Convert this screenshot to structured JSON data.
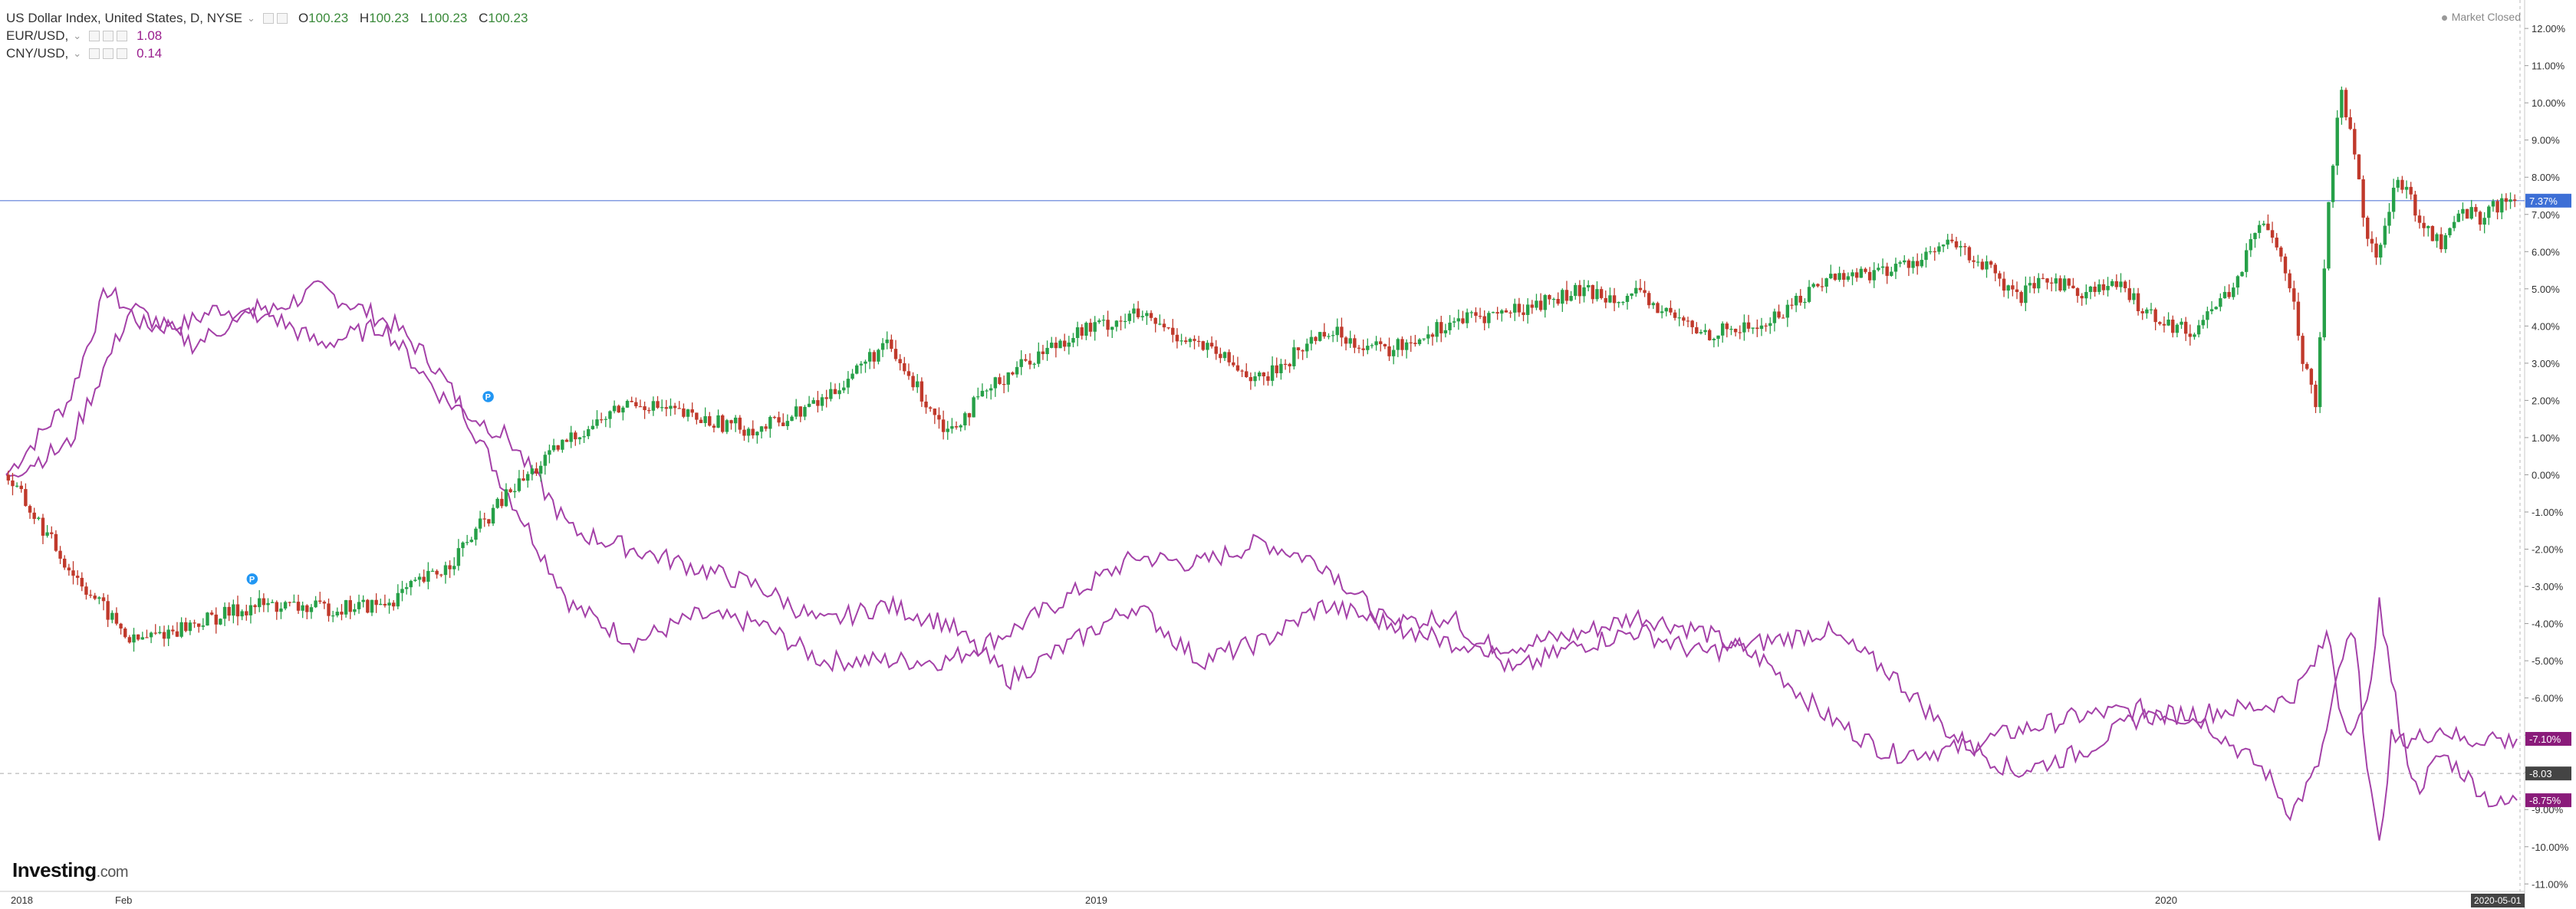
{
  "header": {
    "title": "US Dollar Index, United States, D, NYSE",
    "open_label": "O",
    "open": "100.23",
    "high_label": "H",
    "high": "100.23",
    "low_label": "L",
    "low": "100.23",
    "close_label": "C",
    "close": "100.23"
  },
  "legend": {
    "eur_name": "EUR/USD,",
    "eur_value": "1.08",
    "cny_name": "CNY/USD,",
    "cny_value": "0.14"
  },
  "market_status": "Market Closed",
  "logo": {
    "brand": "Investing",
    "suffix": ".com"
  },
  "colors": {
    "candle_up": "#26a048",
    "candle_down": "#c0392b",
    "compare_line": "#a441a8",
    "price_line": "#5b7bd8",
    "badge_blue": "#3d6fd6",
    "badge_purple": "#8a1b7a",
    "badge_dark": "#444444",
    "axis_text": "#333333",
    "marker": "#2196f3"
  },
  "chart_data": {
    "type": "line",
    "x_tick_labels": [
      "2018",
      "Feb",
      "2019",
      "2020"
    ],
    "x_end_label": "2020-05-01",
    "y_tick_labels": [
      "12.00%",
      "11.00%",
      "10.00%",
      "9.00%",
      "8.00%",
      "7.00%",
      "6.00%",
      "5.00%",
      "4.00%",
      "3.00%",
      "2.00%",
      "1.00%",
      "0.00%",
      "-1.00%",
      "-2.00%",
      "-3.00%",
      "-4.00%",
      "-5.00%",
      "-6.00%",
      "-7.00%",
      "-8.00%",
      "-9.00%",
      "-10.00%",
      "-11.00%"
    ],
    "ylim": [
      -11.2,
      12.6
    ],
    "xlim": [
      0,
      1000
    ],
    "series": [
      {
        "name": "US Dollar Index",
        "style": "candlestick",
        "x": [
          0,
          25,
          50,
          75,
          100,
          125,
          150,
          175,
          200,
          225,
          250,
          275,
          300,
          325,
          350,
          375,
          400,
          425,
          450,
          475,
          500,
          525,
          550,
          575,
          600,
          625,
          650,
          675,
          700,
          725,
          750,
          765,
          775,
          790,
          800,
          815,
          825,
          840,
          855,
          870,
          880,
          885,
          890,
          895,
          900,
          905,
          910,
          915,
          920,
          925,
          930,
          935,
          940,
          945,
          950,
          955,
          960,
          965,
          970,
          975,
          980,
          985,
          990,
          995,
          999
        ],
        "values": [
          0,
          -2.5,
          -4.5,
          -4,
          -3.5,
          -3.6,
          -3.5,
          -2.5,
          -0.5,
          1,
          2,
          1.5,
          1.2,
          2,
          3.5,
          1.2,
          2.8,
          3.8,
          4.3,
          3.5,
          2.5,
          3.9,
          3.3,
          4.1,
          4.4,
          4.9,
          4.8,
          3.8,
          4,
          5.3,
          5.5,
          5.9,
          6.2,
          5.5,
          4.7,
          5.3,
          4.9,
          5.1,
          4.3,
          3.8,
          4.6,
          4.9,
          5.5,
          6.3,
          6.9,
          6.2,
          5,
          3,
          2,
          7.5,
          10.3,
          9,
          6.5,
          5.8,
          7.5,
          7.9,
          7,
          6.5,
          6.2,
          6.8,
          7.1,
          6.9,
          7.2,
          7.3,
          7.37
        ]
      },
      {
        "name": "EUR/USD",
        "style": "line",
        "x": [
          0,
          25,
          40,
          55,
          70,
          85,
          100,
          115,
          125,
          140,
          155,
          170,
          180,
          200,
          225,
          250,
          275,
          300,
          325,
          350,
          375,
          400,
          425,
          450,
          475,
          500,
          525,
          550,
          575,
          600,
          625,
          650,
          675,
          700,
          725,
          750,
          775,
          800,
          825,
          850,
          875,
          900,
          910,
          920,
          925,
          930,
          935,
          940,
          945,
          950,
          955,
          960,
          970,
          980,
          990,
          995,
          999
        ],
        "values": [
          0,
          2,
          5,
          4,
          4,
          4.5,
          4.2,
          4.7,
          5,
          4.5,
          4,
          3,
          2,
          -0.5,
          -3.5,
          -4.5,
          -3.8,
          -4,
          -5,
          -5,
          -5,
          -4.2,
          -3.2,
          -2.2,
          -2.4,
          -1.8,
          -2.4,
          -4,
          -4.5,
          -4.6,
          -4.3,
          -3.8,
          -4.2,
          -5,
          -6.5,
          -7.5,
          -7.4,
          -6.9,
          -6.5,
          -6.3,
          -6.6,
          -8,
          -9.1,
          -8,
          -6.7,
          -5,
          -4.2,
          -7.5,
          -10.2,
          -7,
          -7.2,
          -8.5,
          -7.5,
          -8.1,
          -8.8,
          -8.9,
          -8.75
        ]
      },
      {
        "name": "CNY/USD",
        "style": "line",
        "x": [
          0,
          25,
          50,
          75,
          100,
          125,
          150,
          175,
          200,
          225,
          250,
          275,
          300,
          325,
          350,
          375,
          400,
          425,
          450,
          475,
          500,
          525,
          550,
          575,
          600,
          625,
          650,
          675,
          700,
          725,
          750,
          775,
          800,
          825,
          850,
          875,
          900,
          910,
          920,
          925,
          930,
          935,
          940,
          945,
          950,
          955,
          960,
          970,
          980,
          990,
          995,
          999
        ],
        "values": [
          0,
          0.8,
          4.5,
          3.5,
          4.5,
          3.5,
          4,
          2,
          1,
          -1.5,
          -2,
          -2.5,
          -3,
          -4,
          -3.5,
          -4,
          -5.5,
          -4.5,
          -3.5,
          -5,
          -4.5,
          -3.5,
          -4,
          -3.8,
          -5.3,
          -4.6,
          -4.2,
          -4.8,
          -4.5,
          -4.2,
          -5.3,
          -7,
          -8,
          -7.5,
          -6.5,
          -6.4,
          -6.2,
          -6,
          -5,
          -4.2,
          -6.5,
          -6.8,
          -6.4,
          -3.5,
          -5.5,
          -7.3,
          -7.1,
          -6.8,
          -7.2,
          -7,
          -7.2,
          -7.1
        ]
      }
    ],
    "hline": {
      "value": 7.37,
      "label": "7.37%"
    },
    "badges": [
      {
        "value": -7.1,
        "label": "-7.10%",
        "style": "purple"
      },
      {
        "value": -8.75,
        "label": "-8.75%",
        "style": "purple"
      },
      {
        "value": -8.03,
        "label": "-8.03",
        "style": "dark"
      }
    ],
    "markers": [
      {
        "x": 192,
        "value": 2.1,
        "label": "P"
      },
      {
        "x": 98,
        "value": -2.8,
        "label": "P"
      }
    ],
    "grid": false,
    "legend_position": "top-left"
  }
}
